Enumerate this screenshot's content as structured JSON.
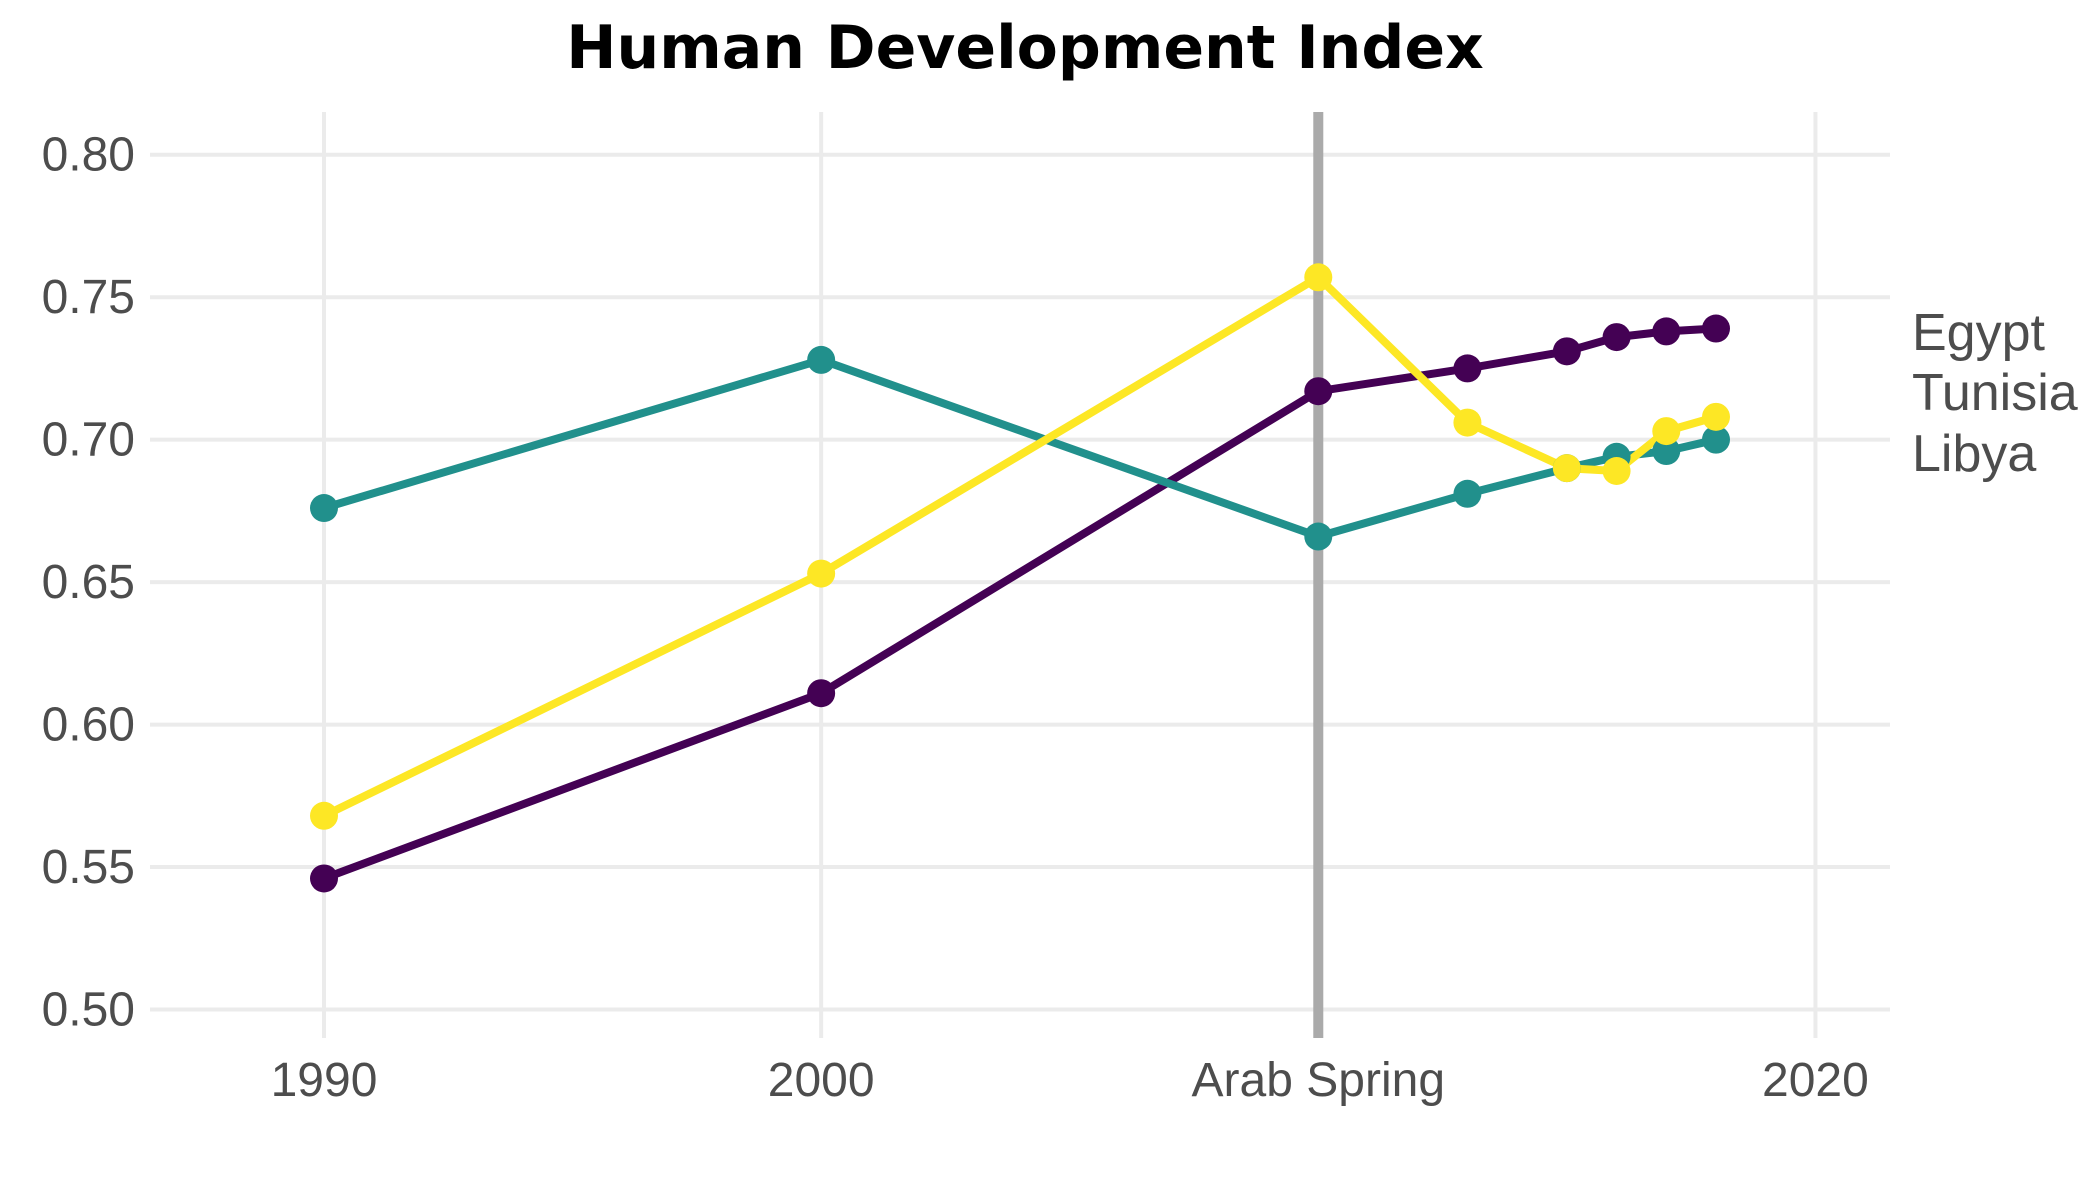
{
  "chart_data": {
    "type": "line",
    "title": "Human Development Index",
    "xlabel": "",
    "ylabel": "",
    "xlim": [
      1986.5,
      2021.5
    ],
    "ylim": [
      0.49,
      0.815
    ],
    "x_ticks": [
      {
        "value": 1990,
        "label": "1990"
      },
      {
        "value": 2000,
        "label": "2000"
      },
      {
        "value": 2010,
        "label": "Arab Spring"
      },
      {
        "value": 2020,
        "label": "2020"
      }
    ],
    "y_ticks": [
      {
        "value": 0.5,
        "label": "0.50"
      },
      {
        "value": 0.55,
        "label": "0.55"
      },
      {
        "value": 0.6,
        "label": "0.60"
      },
      {
        "value": 0.65,
        "label": "0.65"
      },
      {
        "value": 0.7,
        "label": "0.70"
      },
      {
        "value": 0.75,
        "label": "0.75"
      },
      {
        "value": 0.8,
        "label": "0.80"
      }
    ],
    "x_gridlines": [
      1990,
      2000,
      2010,
      2020
    ],
    "grid": true,
    "legend": "direct-labels-right",
    "annotations": [
      {
        "type": "vline",
        "x": 2010,
        "color": "#aaaaaa"
      }
    ],
    "series": [
      {
        "name": "Egypt",
        "color": "#440154",
        "points": [
          {
            "x": 1990,
            "y": 0.546
          },
          {
            "x": 2000,
            "y": 0.611
          },
          {
            "x": 2010,
            "y": 0.717
          },
          {
            "x": 2013,
            "y": 0.725
          },
          {
            "x": 2015,
            "y": 0.731
          },
          {
            "x": 2016,
            "y": 0.736
          },
          {
            "x": 2017,
            "y": 0.738
          },
          {
            "x": 2018,
            "y": 0.739
          }
        ]
      },
      {
        "name": "Tunisia",
        "color": "#21908c",
        "points": [
          {
            "x": 1990,
            "y": 0.676
          },
          {
            "x": 2000,
            "y": 0.728
          },
          {
            "x": 2010,
            "y": 0.666
          },
          {
            "x": 2013,
            "y": 0.681
          },
          {
            "x": 2015,
            "y": 0.69
          },
          {
            "x": 2016,
            "y": 0.694
          },
          {
            "x": 2017,
            "y": 0.696
          },
          {
            "x": 2018,
            "y": 0.7
          }
        ]
      },
      {
        "name": "Libya",
        "color": "#fde725",
        "points": [
          {
            "x": 1990,
            "y": 0.568
          },
          {
            "x": 2000,
            "y": 0.653
          },
          {
            "x": 2010,
            "y": 0.757
          },
          {
            "x": 2013,
            "y": 0.706
          },
          {
            "x": 2015,
            "y": 0.69
          },
          {
            "x": 2016,
            "y": 0.689
          },
          {
            "x": 2017,
            "y": 0.703
          },
          {
            "x": 2018,
            "y": 0.708
          }
        ]
      }
    ]
  }
}
